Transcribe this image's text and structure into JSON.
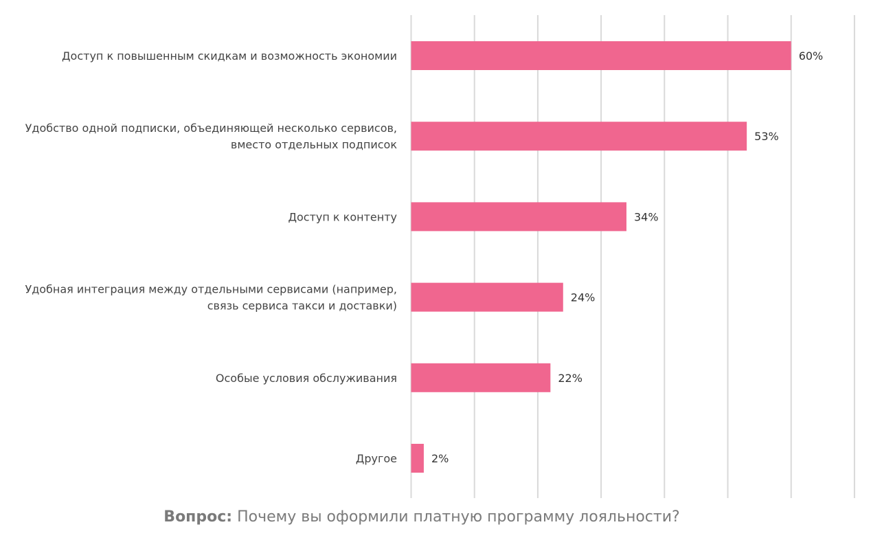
{
  "chart_data": {
    "type": "bar",
    "orientation": "horizontal",
    "categories": [
      [
        "Доступ к повышенным скидкам и возможность экономии"
      ],
      [
        "Удобство одной подписки, объединяющей несколько сервисов,",
        "вместо отдельных подписок"
      ],
      [
        "Доступ к контенту"
      ],
      [
        "Удобная интеграция между отдельными сервисами (например,",
        "связь сервиса такси и доставки)"
      ],
      [
        "Особые условия обслуживания"
      ],
      [
        "Другое"
      ]
    ],
    "values": [
      60,
      53,
      34,
      24,
      22,
      2
    ],
    "value_labels": [
      "60%",
      "53%",
      "34%",
      "24%",
      "22%",
      "2%"
    ],
    "xlim": [
      0,
      70
    ],
    "grid_step": 10,
    "grid": true,
    "bar_color": "#F0668F",
    "title": "",
    "xlabel": "",
    "ylabel": ""
  },
  "caption": {
    "prefix": "Вопрос:",
    "text": " Почему вы оформили платную программу лояльности?"
  }
}
